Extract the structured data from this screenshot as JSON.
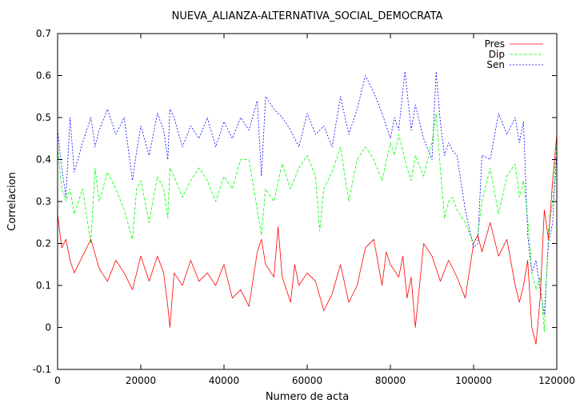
{
  "chart_data": {
    "type": "line",
    "title": "NUEVA_ALIANZA-ALTERNATIVA_SOCIAL_DEMOCRATA",
    "xlabel": "Numero de acta",
    "ylabel": "Correlacion",
    "xlim": [
      0,
      120000
    ],
    "ylim": [
      -0.1,
      0.7
    ],
    "xticks": [
      0,
      20000,
      40000,
      60000,
      80000,
      100000,
      120000
    ],
    "yticks": [
      -0.1,
      0,
      0.1,
      0.2,
      0.3,
      0.4,
      0.5,
      0.6,
      0.7
    ],
    "xtick_labels": [
      "0",
      "20000",
      "40000",
      "60000",
      "80000",
      "100000",
      "120000"
    ],
    "ytick_labels": [
      "-0.1",
      "0",
      "0.1",
      "0.2",
      "0.3",
      "0.4",
      "0.5",
      "0.6",
      "0.7"
    ],
    "grid": false,
    "legend_position": "top-right",
    "series": [
      {
        "name": "Pres",
        "color": "#ff0000",
        "dash": "solid",
        "x": [
          0,
          1000,
          2000,
          3000,
          4000,
          6000,
          8000,
          10000,
          12000,
          14000,
          16000,
          18000,
          20000,
          22000,
          24000,
          25500,
          26500,
          27000,
          28000,
          30000,
          32000,
          34000,
          36000,
          38000,
          40000,
          42000,
          44000,
          46000,
          48000,
          49000,
          50000,
          52000,
          53000,
          54000,
          56000,
          57000,
          58000,
          60000,
          62000,
          64000,
          66000,
          68000,
          70000,
          72000,
          74000,
          76000,
          78000,
          79000,
          80000,
          82000,
          83000,
          84000,
          85000,
          86000,
          87000,
          88000,
          90000,
          92000,
          94000,
          96000,
          98000,
          100000,
          101000,
          102000,
          104000,
          106000,
          108000,
          110000,
          111000,
          112000,
          113000,
          114000,
          115000,
          116000,
          117000,
          118000,
          119000,
          120000
        ],
        "values": [
          0.27,
          0.19,
          0.21,
          0.16,
          0.13,
          0.17,
          0.21,
          0.14,
          0.11,
          0.16,
          0.13,
          0.09,
          0.17,
          0.11,
          0.17,
          0.13,
          0.05,
          0.0,
          0.13,
          0.1,
          0.16,
          0.11,
          0.13,
          0.1,
          0.15,
          0.07,
          0.09,
          0.05,
          0.18,
          0.21,
          0.15,
          0.12,
          0.24,
          0.12,
          0.06,
          0.15,
          0.1,
          0.13,
          0.11,
          0.04,
          0.08,
          0.15,
          0.06,
          0.1,
          0.19,
          0.21,
          0.1,
          0.18,
          0.15,
          0.12,
          0.17,
          0.07,
          0.12,
          0.0,
          0.1,
          0.2,
          0.17,
          0.11,
          0.16,
          0.12,
          0.07,
          0.2,
          0.22,
          0.18,
          0.25,
          0.17,
          0.21,
          0.1,
          0.06,
          0.1,
          0.16,
          0.0,
          -0.04,
          0.07,
          0.28,
          0.21,
          0.35,
          0.46
        ]
      },
      {
        "name": "Dip",
        "color": "#00ff00",
        "dash": "dashed",
        "x": [
          0,
          1000,
          2000,
          3000,
          4000,
          6000,
          8000,
          9000,
          10000,
          12000,
          14000,
          16000,
          18000,
          19000,
          20000,
          22000,
          24000,
          25500,
          26500,
          27000,
          28000,
          30000,
          32000,
          34000,
          36000,
          38000,
          40000,
          42000,
          44000,
          46000,
          48000,
          49000,
          50000,
          52000,
          54000,
          56000,
          58000,
          60000,
          62000,
          63000,
          64000,
          66000,
          68000,
          70000,
          72000,
          74000,
          76000,
          78000,
          80000,
          81000,
          82000,
          84000,
          85000,
          86000,
          88000,
          90000,
          91000,
          92000,
          93000,
          94000,
          95000,
          96000,
          98000,
          100000,
          101000,
          102000,
          104000,
          106000,
          108000,
          110000,
          111000,
          112000,
          113000,
          114000,
          115000,
          116000,
          117000,
          118000,
          119000,
          120000
        ],
        "values": [
          0.43,
          0.33,
          0.3,
          0.33,
          0.27,
          0.33,
          0.2,
          0.38,
          0.3,
          0.37,
          0.33,
          0.28,
          0.21,
          0.33,
          0.35,
          0.25,
          0.36,
          0.33,
          0.26,
          0.38,
          0.36,
          0.31,
          0.35,
          0.38,
          0.35,
          0.3,
          0.36,
          0.33,
          0.4,
          0.4,
          0.28,
          0.22,
          0.33,
          0.3,
          0.39,
          0.33,
          0.38,
          0.41,
          0.36,
          0.23,
          0.33,
          0.37,
          0.43,
          0.3,
          0.4,
          0.43,
          0.4,
          0.35,
          0.44,
          0.41,
          0.46,
          0.38,
          0.35,
          0.41,
          0.36,
          0.44,
          0.51,
          0.38,
          0.26,
          0.3,
          0.31,
          0.28,
          0.25,
          0.2,
          0.22,
          0.3,
          0.38,
          0.27,
          0.36,
          0.39,
          0.31,
          0.35,
          0.26,
          0.13,
          0.09,
          0.12,
          -0.01,
          0.23,
          0.3,
          0.44
        ]
      },
      {
        "name": "Sen",
        "color": "#0000ff",
        "dash": "dotted",
        "x": [
          0,
          1000,
          2000,
          3000,
          4000,
          6000,
          8000,
          9000,
          10000,
          12000,
          14000,
          16000,
          18000,
          19000,
          20000,
          22000,
          24000,
          25500,
          26500,
          27000,
          28000,
          30000,
          32000,
          34000,
          36000,
          38000,
          40000,
          42000,
          44000,
          46000,
          48000,
          49000,
          50000,
          52000,
          54000,
          56000,
          58000,
          60000,
          62000,
          64000,
          66000,
          68000,
          70000,
          72000,
          74000,
          76000,
          78000,
          80000,
          81000,
          82000,
          83500,
          85000,
          86000,
          88000,
          90000,
          91000,
          92000,
          93000,
          94000,
          95000,
          96000,
          98000,
          100000,
          101000,
          102000,
          104000,
          106000,
          108000,
          110000,
          111000,
          112000,
          113000,
          114000,
          115000,
          116000,
          117000,
          118000,
          119000,
          120000
        ],
        "values": [
          0.47,
          0.38,
          0.31,
          0.5,
          0.37,
          0.44,
          0.5,
          0.43,
          0.47,
          0.52,
          0.46,
          0.5,
          0.35,
          0.42,
          0.48,
          0.41,
          0.51,
          0.47,
          0.4,
          0.52,
          0.5,
          0.43,
          0.48,
          0.45,
          0.5,
          0.43,
          0.49,
          0.45,
          0.5,
          0.47,
          0.54,
          0.36,
          0.55,
          0.52,
          0.5,
          0.47,
          0.43,
          0.51,
          0.46,
          0.48,
          0.43,
          0.55,
          0.46,
          0.52,
          0.6,
          0.56,
          0.51,
          0.45,
          0.5,
          0.47,
          0.61,
          0.47,
          0.53,
          0.45,
          0.4,
          0.61,
          0.49,
          0.41,
          0.44,
          0.42,
          0.41,
          0.28,
          0.19,
          0.2,
          0.41,
          0.4,
          0.51,
          0.46,
          0.5,
          0.44,
          0.49,
          0.22,
          0.13,
          0.16,
          0.09,
          0.03,
          0.2,
          0.25,
          0.42
        ]
      }
    ]
  }
}
